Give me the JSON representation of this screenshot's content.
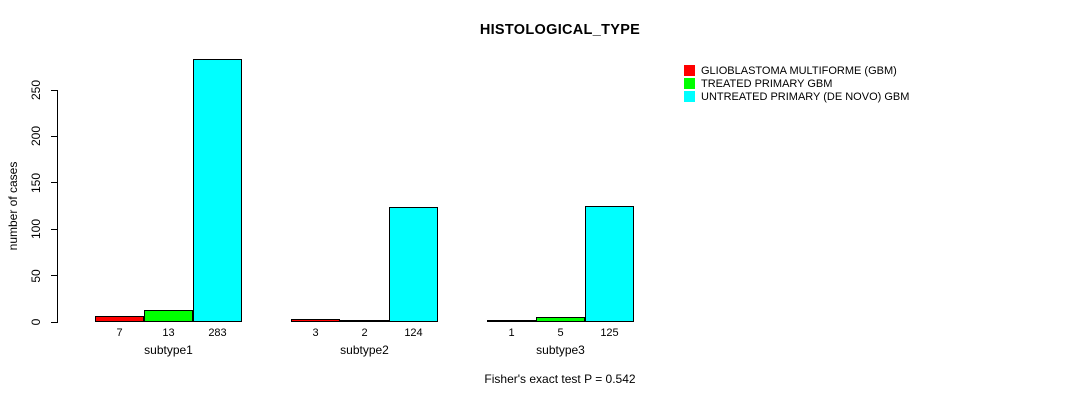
{
  "chart_data": {
    "type": "bar",
    "title": "HISTOLOGICAL_TYPE",
    "ylabel": "number of cases",
    "xlabel": "",
    "categories": [
      "subtype1",
      "subtype2",
      "subtype3"
    ],
    "series": [
      {
        "name": "GLIOBLASTOMA MULTIFORME (GBM)",
        "color": "#FF0000",
        "values": [
          7,
          3,
          1
        ]
      },
      {
        "name": "TREATED PRIMARY GBM",
        "color": "#00FF00",
        "values": [
          13,
          2,
          5
        ]
      },
      {
        "name": "UNTREATED PRIMARY (DE NOVO) GBM",
        "color": "#00FFFF",
        "values": [
          283,
          124,
          125
        ]
      }
    ],
    "yticks": [
      0,
      50,
      100,
      150,
      200,
      250
    ],
    "ylim": [
      0,
      283
    ],
    "bar_value_labels": true,
    "legend_position": "top-right",
    "grid": false,
    "annotation": "Fisher's exact test P = 0.542"
  },
  "colors": {
    "background": "#FFFFFF",
    "axis": "#000000",
    "text": "#000000"
  }
}
